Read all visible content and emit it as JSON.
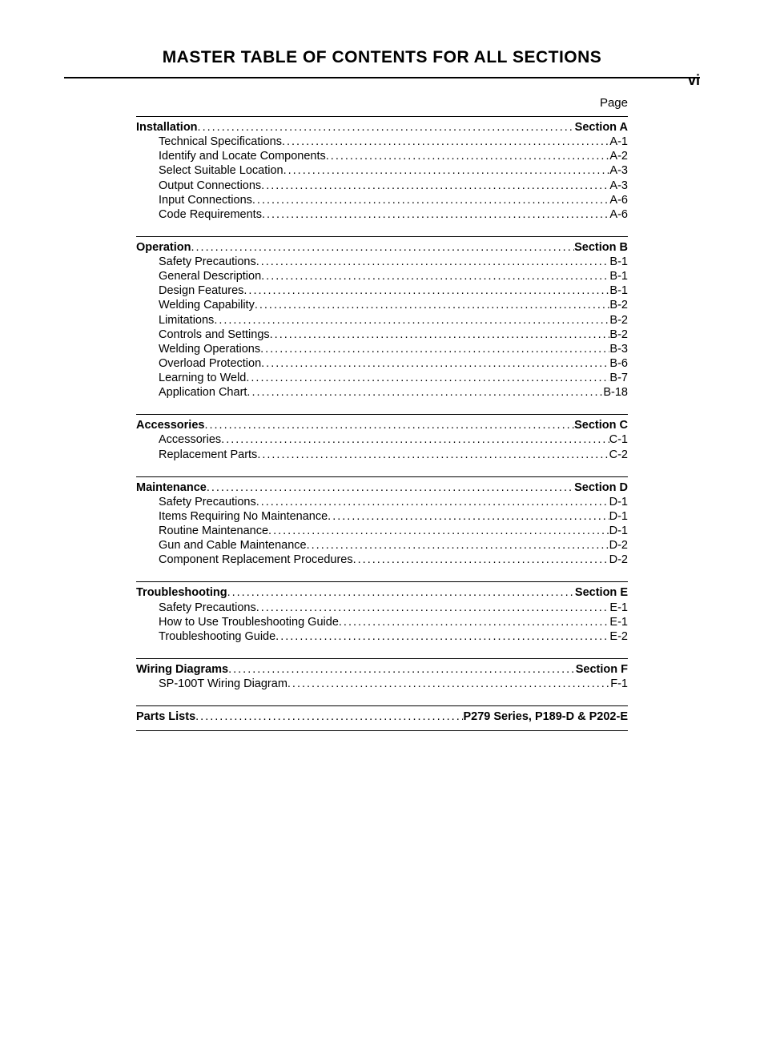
{
  "page_number": "vi",
  "title": "MASTER TABLE OF CONTENTS FOR ALL SECTIONS",
  "page_label": "Page",
  "sections": [
    {
      "title": "Installation",
      "page": "Section A",
      "items": [
        {
          "title": "Technical Specifications",
          "page": "A-1"
        },
        {
          "title": "Identify and Locate Components",
          "page": "A-2"
        },
        {
          "title": "Select Suitable Location",
          "page": "A-3"
        },
        {
          "title": "Output Connections",
          "page": "A-3"
        },
        {
          "title": "Input Connections",
          "page": "A-6"
        },
        {
          "title": "Code Requirements",
          "page": "A-6"
        }
      ]
    },
    {
      "title": "Operation",
      "page": "Section B",
      "items": [
        {
          "title": "Safety Precautions",
          "page": "B-1"
        },
        {
          "title": "General Description",
          "page": "B-1"
        },
        {
          "title": "Design Features",
          "page": "B-1"
        },
        {
          "title": "Welding Capability",
          "page": "B-2"
        },
        {
          "title": "Limitations",
          "page": "B-2"
        },
        {
          "title": "Controls and Settings",
          "page": "B-2"
        },
        {
          "title": "Welding Operations",
          "page": "B-3"
        },
        {
          "title": "Overload Protection",
          "page": "B-6"
        },
        {
          "title": "Learning to Weld",
          "page": "B-7"
        },
        {
          "title": "Application Chart",
          "page": "B-18"
        }
      ]
    },
    {
      "title": "Accessories",
      "page": "Section C",
      "items": [
        {
          "title": "Accessories",
          "page": "C-1"
        },
        {
          "title": "Replacement Parts",
          "page": "C-2"
        }
      ]
    },
    {
      "title": "Maintenance",
      "page": "Section D",
      "items": [
        {
          "title": "Safety Precautions",
          "page": "D-1"
        },
        {
          "title": "Items Requiring No Maintenance",
          "page": "D-1"
        },
        {
          "title": "Routine Maintenance",
          "page": "D-1"
        },
        {
          "title": "Gun and Cable Maintenance",
          "page": "D-2"
        },
        {
          "title": "Component Replacement Procedures",
          "page": "D-2"
        }
      ]
    },
    {
      "title": "Troubleshooting",
      "page": "Section E",
      "items": [
        {
          "title": "Safety Precautions",
          "page": "E-1"
        },
        {
          "title": "How to Use Troubleshooting Guide",
          "page": "E-1"
        },
        {
          "title": "Troubleshooting Guide",
          "page": "E-2"
        }
      ]
    },
    {
      "title": "Wiring Diagrams",
      "page": "Section F",
      "items": [
        {
          "title": "SP-100T Wiring Diagram",
          "page": "F-1"
        }
      ]
    },
    {
      "title": "Parts Lists",
      "page": "P279 Series, P189-D & P202-E",
      "items": []
    }
  ]
}
